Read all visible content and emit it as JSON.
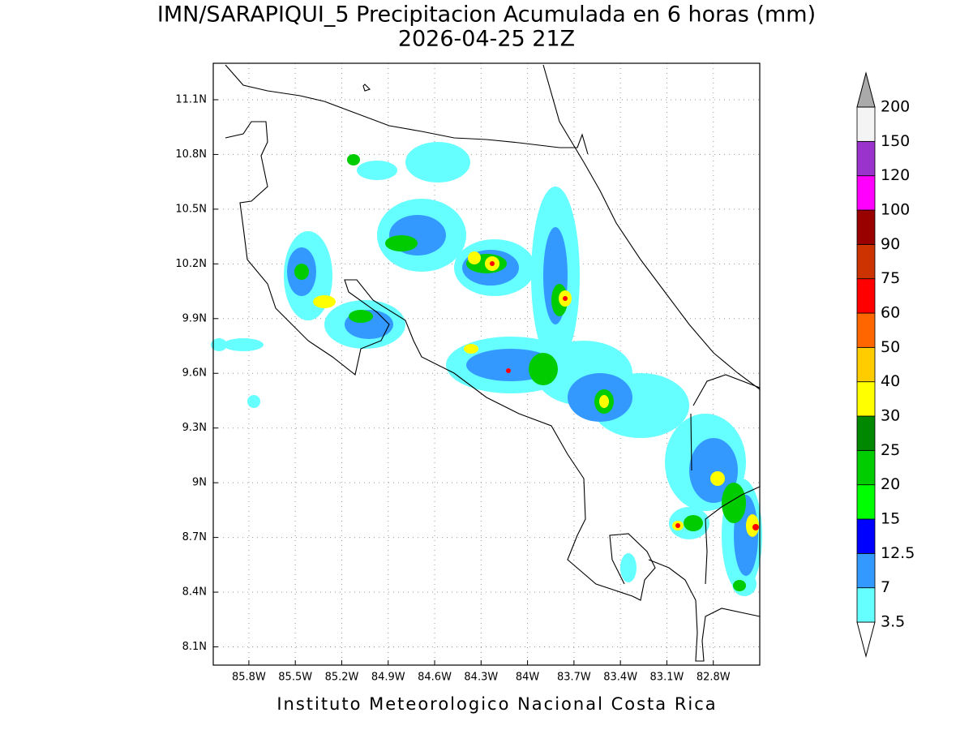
{
  "title": "IMN/SARAPIQUI_5 Precipitacion Acumulada en 6 horas (mm)",
  "subtitle": "2026-04-25 21Z",
  "footer": "Instituto Meteorologico Nacional Costa Rica",
  "map": {
    "lon_range": [
      -86.03,
      -82.5
    ],
    "lat_range": [
      8.0,
      11.3
    ],
    "lon_ticks": [
      {
        "value": -85.8,
        "label": "85.8W"
      },
      {
        "value": -85.5,
        "label": "85.5W"
      },
      {
        "value": -85.2,
        "label": "85.2W"
      },
      {
        "value": -84.9,
        "label": "84.9W"
      },
      {
        "value": -84.6,
        "label": "84.6W"
      },
      {
        "value": -84.3,
        "label": "84.3W"
      },
      {
        "value": -84.0,
        "label": "84W"
      },
      {
        "value": -83.7,
        "label": "83.7W"
      },
      {
        "value": -83.4,
        "label": "83.4W"
      },
      {
        "value": -83.1,
        "label": "83.1W"
      },
      {
        "value": -82.8,
        "label": "82.8W"
      }
    ],
    "lat_ticks": [
      {
        "value": 11.1,
        "label": "11.1N"
      },
      {
        "value": 10.8,
        "label": "10.8N"
      },
      {
        "value": 10.5,
        "label": "10.5N"
      },
      {
        "value": 10.2,
        "label": "10.2N"
      },
      {
        "value": 9.9,
        "label": "9.9N"
      },
      {
        "value": 9.6,
        "label": "9.6N"
      },
      {
        "value": 9.3,
        "label": "9.3N"
      },
      {
        "value": 9.0,
        "label": "9N"
      },
      {
        "value": 8.7,
        "label": "8.7N"
      },
      {
        "value": 8.4,
        "label": "8.4N"
      },
      {
        "value": 8.1,
        "label": "8.1N"
      }
    ]
  },
  "colorbar": {
    "levels": [
      3.5,
      7,
      12.5,
      15,
      20,
      25,
      30,
      40,
      50,
      60,
      75,
      90,
      100,
      120,
      150,
      200
    ],
    "colors": [
      "#ffffff",
      "#66ffff",
      "#3399ff",
      "#0000ff",
      "#00ff00",
      "#00cc00",
      "#008800",
      "#ffff00",
      "#ffcc00",
      "#ff6600",
      "#ff0000",
      "#cc3300",
      "#990000",
      "#ff00ff",
      "#9933cc",
      "#f4f4f4",
      "#aaaaaa"
    ]
  }
}
